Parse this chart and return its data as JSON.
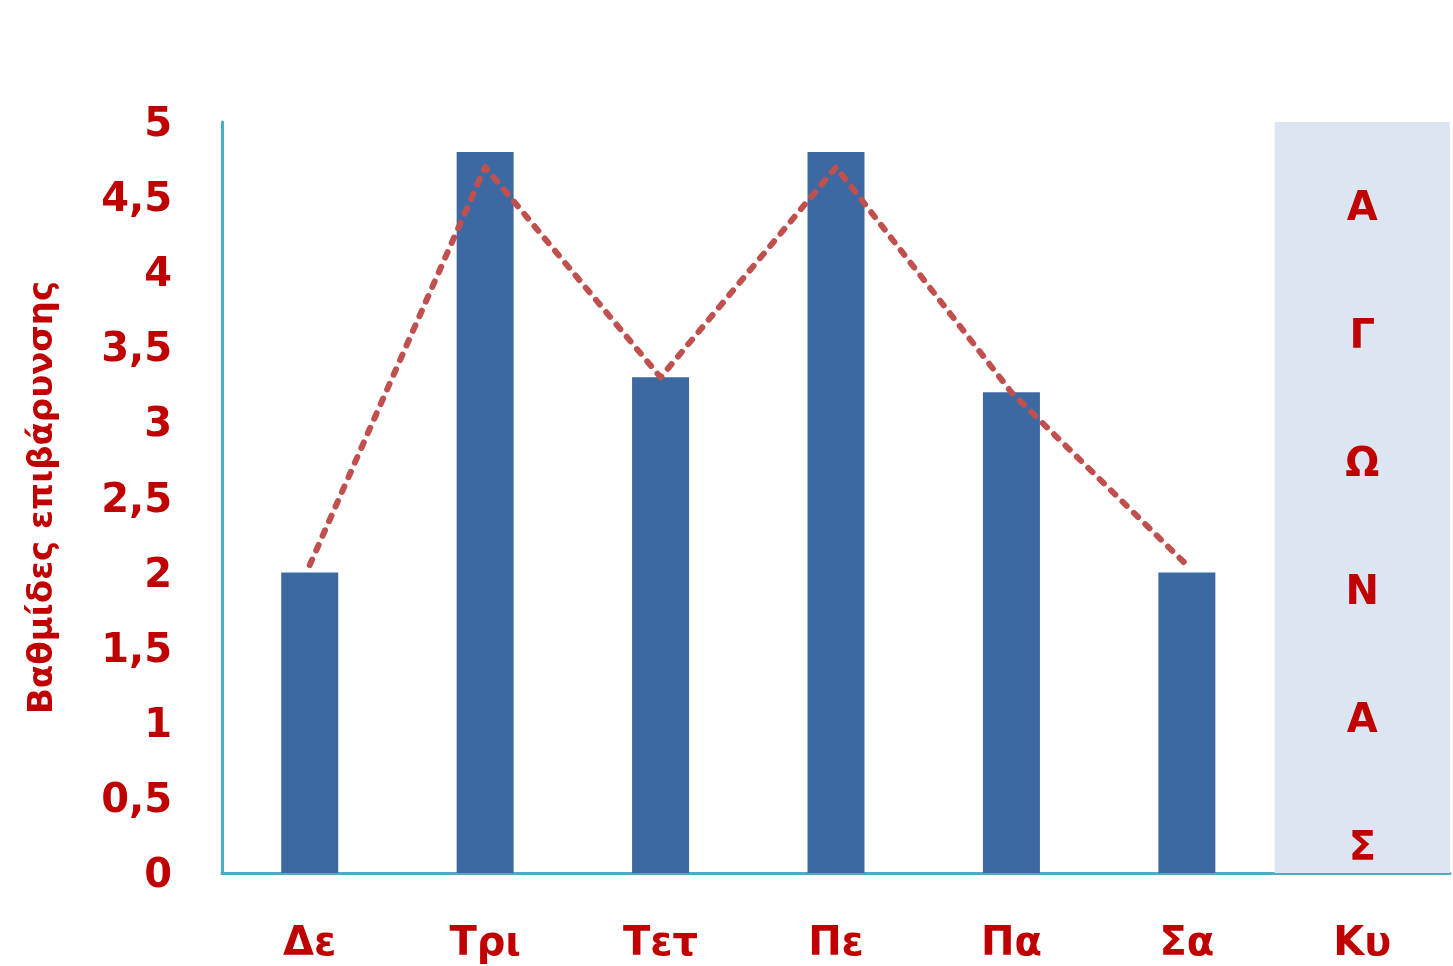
{
  "chart_data": {
    "type": "bar",
    "ylabel": "Βαθμίδες επιβάρυνσης",
    "categories": [
      "Δε",
      "Τρι",
      "Τετ",
      "Πε",
      "Πα",
      "Σα",
      "Κυ"
    ],
    "series": [
      {
        "color": "#3d69a3",
        "values": [
          2,
          4.8,
          3.3,
          4.8,
          3.2,
          2,
          null
        ]
      },
      {
        "type": "line",
        "color": "#c0504d",
        "line_style": "dotted",
        "marker": "none",
        "values": [
          2.05,
          4.7,
          3.3,
          4.7,
          3.2,
          2.05,
          null
        ]
      }
    ],
    "ylim": [
      0,
      5
    ],
    "yticks": [
      0,
      {
        "value": 0.5,
        "label": "0,5"
      },
      1,
      {
        "value": 1.5,
        "label": "1,5"
      },
      2,
      {
        "value": 2.5,
        "label": "2,5"
      },
      3,
      {
        "value": 3.5,
        "label": "3,5"
      },
      4,
      {
        "value": 4.5,
        "label": "4,5"
      },
      5
    ],
    "bands": [
      {
        "axis": "x",
        "from": "Κυ",
        "to": "Κυ",
        "label": "ΑΓΩΝΑΣ",
        "color": "#dce6f2"
      }
    ]
  }
}
